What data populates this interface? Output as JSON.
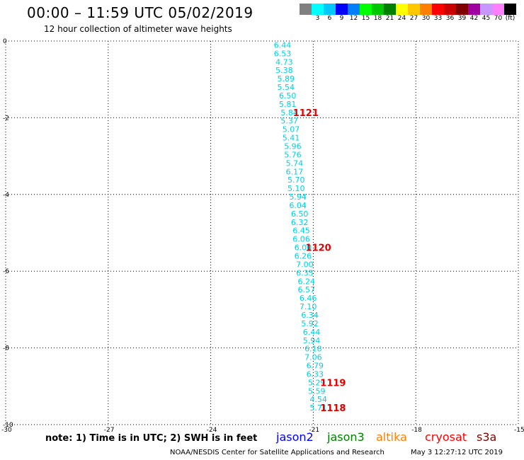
{
  "header": {
    "title": "00:00 – 11:59 UTC 05/02/2019",
    "subtitle": "12 hour collection of altimeter wave heights"
  },
  "legend": {
    "colors": [
      "#808080",
      "#00ffff",
      "#00c8ff",
      "#0000ff",
      "#0080ff",
      "#00ff00",
      "#00c800",
      "#008000",
      "#ffff00",
      "#ffc800",
      "#ff8000",
      "#ff0000",
      "#c80000",
      "#800000",
      "#a000a0",
      "#c896ff",
      "#ff80ff",
      "#000000"
    ],
    "labels": [
      "",
      "3",
      "6",
      "9",
      "12",
      "15",
      "18",
      "21",
      "24",
      "27",
      "30",
      "33",
      "36",
      "39",
      "42",
      "45",
      "70",
      "(ft)"
    ]
  },
  "chart_data": {
    "type": "scatter",
    "title": "00:00 – 11:59 UTC 05/02/2019",
    "subtitle": "12 hour collection of altimeter wave heights",
    "xlim": [
      -30,
      -15
    ],
    "ylim": [
      -10,
      0
    ],
    "xticks": [
      -30,
      -27,
      -24,
      -21,
      -18,
      -15
    ],
    "yticks": [
      0,
      -2,
      -4,
      -6,
      -8,
      -10
    ],
    "grid": true,
    "series": [
      {
        "name": "jason2",
        "color": "#00d0e0",
        "points": [
          {
            "x": -21.9,
            "y": -0.1,
            "label": "6.44"
          },
          {
            "x": -21.9,
            "y": -0.32,
            "label": "6.53"
          },
          {
            "x": -21.85,
            "y": -0.54,
            "label": "4.73"
          },
          {
            "x": -21.85,
            "y": -0.76,
            "label": "5.38"
          },
          {
            "x": -21.8,
            "y": -0.98,
            "label": "5.89"
          },
          {
            "x": -21.8,
            "y": -1.2,
            "label": "5.54"
          },
          {
            "x": -21.75,
            "y": -1.42,
            "label": "6.50"
          },
          {
            "x": -21.75,
            "y": -1.64,
            "label": "5.81"
          },
          {
            "x": -21.7,
            "y": -1.86,
            "label": "5.84"
          },
          {
            "x": -21.7,
            "y": -2.08,
            "label": "5.37"
          },
          {
            "x": -21.65,
            "y": -2.3,
            "label": "5.07"
          },
          {
            "x": -21.65,
            "y": -2.52,
            "label": "5.41"
          },
          {
            "x": -21.6,
            "y": -2.74,
            "label": "5.96"
          },
          {
            "x": -21.6,
            "y": -2.96,
            "label": "5.76"
          },
          {
            "x": -21.55,
            "y": -3.18,
            "label": "5.74"
          },
          {
            "x": -21.55,
            "y": -3.4,
            "label": "6.17"
          },
          {
            "x": -21.5,
            "y": -3.62,
            "label": "5.70"
          },
          {
            "x": -21.5,
            "y": -3.84,
            "label": "5.10"
          },
          {
            "x": -21.45,
            "y": -4.06,
            "label": "5.94"
          },
          {
            "x": -21.45,
            "y": -4.28,
            "label": "6.04"
          },
          {
            "x": -21.4,
            "y": -4.5,
            "label": "6.50"
          },
          {
            "x": -21.4,
            "y": -4.72,
            "label": "6.32"
          },
          {
            "x": -21.35,
            "y": -4.94,
            "label": "6.45"
          },
          {
            "x": -21.35,
            "y": -5.16,
            "label": "6.06"
          },
          {
            "x": -21.3,
            "y": -5.38,
            "label": "6.00"
          },
          {
            "x": -21.3,
            "y": -5.6,
            "label": "6.26"
          },
          {
            "x": -21.25,
            "y": -5.82,
            "label": "7.00"
          },
          {
            "x": -21.25,
            "y": -6.04,
            "label": "6.35"
          },
          {
            "x": -21.2,
            "y": -6.26,
            "label": "6.24"
          },
          {
            "x": -21.2,
            "y": -6.48,
            "label": "6.57"
          },
          {
            "x": -21.15,
            "y": -6.7,
            "label": "6.46"
          },
          {
            "x": -21.15,
            "y": -6.92,
            "label": "7.10"
          },
          {
            "x": -21.1,
            "y": -7.14,
            "label": "6.34"
          },
          {
            "x": -21.1,
            "y": -7.36,
            "label": "5.92"
          },
          {
            "x": -21.05,
            "y": -7.58,
            "label": "6.44"
          },
          {
            "x": -21.05,
            "y": -7.8,
            "label": "5.94"
          },
          {
            "x": -21.0,
            "y": -8.02,
            "label": "6.18"
          },
          {
            "x": -21.0,
            "y": -8.24,
            "label": "7.06"
          },
          {
            "x": -20.95,
            "y": -8.46,
            "label": "6.79"
          },
          {
            "x": -20.95,
            "y": -8.68,
            "label": "6.33"
          },
          {
            "x": -20.9,
            "y": -8.9,
            "label": "5.29"
          },
          {
            "x": -20.9,
            "y": -9.12,
            "label": "5.59"
          },
          {
            "x": -20.85,
            "y": -9.34,
            "label": "4.54"
          },
          {
            "x": -20.85,
            "y": -9.56,
            "label": "5.71"
          }
        ]
      }
    ],
    "annotations": [
      {
        "x": -21.22,
        "y": -1.86,
        "text": "1121",
        "color": "#e00000"
      },
      {
        "x": -20.85,
        "y": -5.38,
        "text": "1120",
        "color": "#e00000"
      },
      {
        "x": -20.42,
        "y": -8.9,
        "text": "1119",
        "color": "#e00000"
      },
      {
        "x": -20.42,
        "y": -9.56,
        "text": "1118",
        "color": "#e00000"
      }
    ]
  },
  "footer": {
    "note": "note: 1) Time is in UTC; 2) SWH is in feet",
    "satellites": [
      {
        "name": "jason2",
        "color": "#0000ff"
      },
      {
        "name": "jason3",
        "color": "#008000"
      },
      {
        "name": "altika",
        "color": "#ff8000"
      },
      {
        "name": "cryosat",
        "color": "#ff0000"
      },
      {
        "name": "s3a",
        "color": "#800000"
      }
    ],
    "credit": "NOAA/NESDIS Center for Satellite Applications and Research",
    "timestamp": "May  3 12:27:12 UTC 2019"
  }
}
